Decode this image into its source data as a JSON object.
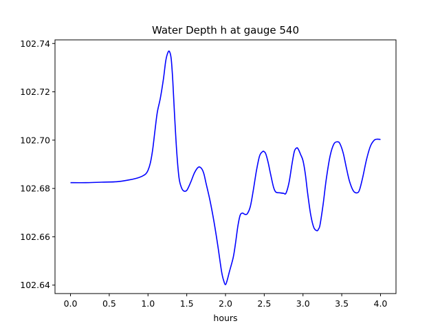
{
  "chart_data": {
    "type": "line",
    "title": "Water Depth h at gauge 540",
    "xlabel": "hours",
    "ylabel": "",
    "xlim": [
      -0.2,
      4.2
    ],
    "ylim": [
      102.6365,
      102.7415
    ],
    "x_ticks": [
      0.0,
      0.5,
      1.0,
      1.5,
      2.0,
      2.5,
      3.0,
      3.5,
      4.0
    ],
    "x_tick_labels": [
      "0.0",
      "0.5",
      "1.0",
      "1.5",
      "2.0",
      "2.5",
      "3.0",
      "3.5",
      "4.0"
    ],
    "y_ticks": [
      102.64,
      102.66,
      102.68,
      102.7,
      102.72,
      102.74
    ],
    "y_tick_labels": [
      "102.64",
      "102.66",
      "102.68",
      "102.70",
      "102.72",
      "102.74"
    ],
    "grid": false,
    "series": [
      {
        "color": "#0000ff",
        "x": [
          0.0,
          0.2,
          0.4,
          0.6,
          0.75,
          0.85,
          0.92,
          0.97,
          1.0,
          1.03,
          1.06,
          1.09,
          1.12,
          1.16,
          1.2,
          1.23,
          1.26,
          1.28,
          1.3,
          1.32,
          1.34,
          1.37,
          1.4,
          1.43,
          1.46,
          1.5,
          1.55,
          1.6,
          1.65,
          1.69,
          1.72,
          1.75,
          1.8,
          1.85,
          1.9,
          1.95,
          1.98,
          2.0,
          2.02,
          2.05,
          2.1,
          2.13,
          2.16,
          2.19,
          2.22,
          2.25,
          2.28,
          2.32,
          2.36,
          2.4,
          2.44,
          2.48,
          2.5,
          2.52,
          2.55,
          2.58,
          2.62,
          2.65,
          2.7,
          2.75,
          2.78,
          2.82,
          2.86,
          2.89,
          2.92,
          2.94,
          2.97,
          3.0,
          3.03,
          3.06,
          3.1,
          3.14,
          3.18,
          3.2,
          3.22,
          3.26,
          3.3,
          3.35,
          3.4,
          3.45,
          3.48,
          3.52,
          3.56,
          3.6,
          3.65,
          3.7,
          3.73,
          3.77,
          3.82,
          3.87,
          3.92,
          3.96,
          4.0
        ],
        "y": [
          102.6824,
          102.6824,
          102.6826,
          102.6828,
          102.6835,
          102.6842,
          102.685,
          102.686,
          102.6875,
          102.6905,
          102.696,
          102.704,
          102.7115,
          102.7175,
          102.7255,
          102.733,
          102.7365,
          102.7365,
          102.7335,
          102.7245,
          102.712,
          102.6955,
          102.6845,
          102.6805,
          102.679,
          102.6792,
          102.6825,
          102.6865,
          102.6888,
          102.6883,
          102.6862,
          102.682,
          102.675,
          102.6665,
          102.6565,
          102.6455,
          102.6415,
          102.6402,
          102.6418,
          102.6455,
          102.6515,
          102.6575,
          102.6645,
          102.669,
          102.6698,
          102.6693,
          102.6695,
          102.6725,
          102.6795,
          102.6875,
          102.6935,
          102.6953,
          102.6952,
          102.6943,
          102.6908,
          102.6862,
          102.6805,
          102.6785,
          102.6782,
          102.678,
          102.678,
          102.6825,
          102.6905,
          102.6955,
          102.6968,
          102.6962,
          102.694,
          102.6915,
          102.686,
          102.678,
          102.669,
          102.6638,
          102.6625,
          102.6632,
          102.665,
          102.6735,
          102.6838,
          102.6935,
          102.6985,
          102.6993,
          102.6983,
          102.6945,
          102.6885,
          102.683,
          102.679,
          102.6782,
          102.6795,
          102.6845,
          102.692,
          102.6975,
          102.7,
          102.7004,
          102.7003
        ]
      }
    ]
  }
}
